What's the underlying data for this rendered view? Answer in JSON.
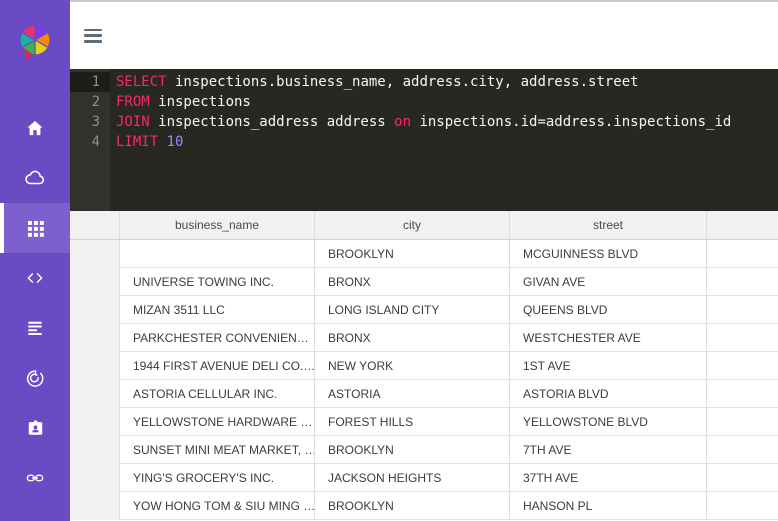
{
  "colors": {
    "sidebar_bg": "#6a4bc4",
    "sidebar_active_bg": "#7d60ce",
    "editor_bg": "#272822",
    "keyword": "#f92672",
    "number": "#ae81ff",
    "code_text": "#f8f8f2",
    "header_bg": "#f1f1f1",
    "cell_text": "#3c3c3c"
  },
  "sidebar": {
    "items": [
      {
        "icon": "home",
        "name": "home",
        "active": false
      },
      {
        "icon": "cloud",
        "name": "cloud",
        "active": false
      },
      {
        "icon": "apps",
        "name": "apps",
        "active": true
      },
      {
        "icon": "code",
        "name": "code",
        "active": false
      },
      {
        "icon": "list",
        "name": "list",
        "active": false
      },
      {
        "icon": "tracking",
        "name": "tracking",
        "active": false
      },
      {
        "icon": "badge",
        "name": "contact-badge",
        "active": false
      },
      {
        "icon": "link",
        "name": "link",
        "active": false
      }
    ]
  },
  "topbar": {
    "menu_icon": "hamburger-icon"
  },
  "editor": {
    "lines": [
      {
        "number": "1",
        "active": true,
        "tokens": [
          [
            "keyword",
            "SELECT"
          ],
          [
            "plain",
            " inspections.business_name, address.city, address.street"
          ]
        ]
      },
      {
        "number": "2",
        "active": false,
        "tokens": [
          [
            "keyword",
            "FROM"
          ],
          [
            "plain",
            " inspections"
          ]
        ]
      },
      {
        "number": "3",
        "active": false,
        "tokens": [
          [
            "keyword",
            "JOIN"
          ],
          [
            "plain",
            " inspections_address address "
          ],
          [
            "keyword",
            "on"
          ],
          [
            "plain",
            " inspections.id=address.inspections_id"
          ]
        ]
      },
      {
        "number": "4",
        "active": false,
        "tokens": [
          [
            "keyword",
            "LIMIT"
          ],
          [
            "plain",
            " "
          ],
          [
            "number",
            "10"
          ]
        ]
      }
    ]
  },
  "table": {
    "columns": [
      "business_name",
      "city",
      "street",
      ""
    ],
    "rows": [
      [
        "",
        "BROOKLYN",
        "MCGUINNESS BLVD",
        ""
      ],
      [
        "UNIVERSE TOWING INC.",
        "BRONX",
        "GIVAN AVE",
        ""
      ],
      [
        "MIZAN 3511 LLC",
        "LONG ISLAND CITY",
        "QUEENS BLVD",
        ""
      ],
      [
        "PARKCHESTER CONVENIEN…",
        "BRONX",
        "WESTCHESTER AVE",
        ""
      ],
      [
        "1944 FIRST AVENUE DELI CO.…",
        "NEW YORK",
        "1ST AVE",
        ""
      ],
      [
        "ASTORIA CELLULAR INC.",
        "ASTORIA",
        "ASTORIA BLVD",
        ""
      ],
      [
        "YELLOWSTONE HARDWARE …",
        "FOREST HILLS",
        "YELLOWSTONE BLVD",
        ""
      ],
      [
        "SUNSET MINI MEAT MARKET, …",
        "BROOKLYN",
        "7TH AVE",
        ""
      ],
      [
        "YING'S GROCERY'S INC.",
        "JACKSON HEIGHTS",
        "37TH AVE",
        ""
      ],
      [
        "YOW HONG TOM & SIU MING …",
        "BROOKLYN",
        "HANSON PL",
        ""
      ]
    ]
  }
}
